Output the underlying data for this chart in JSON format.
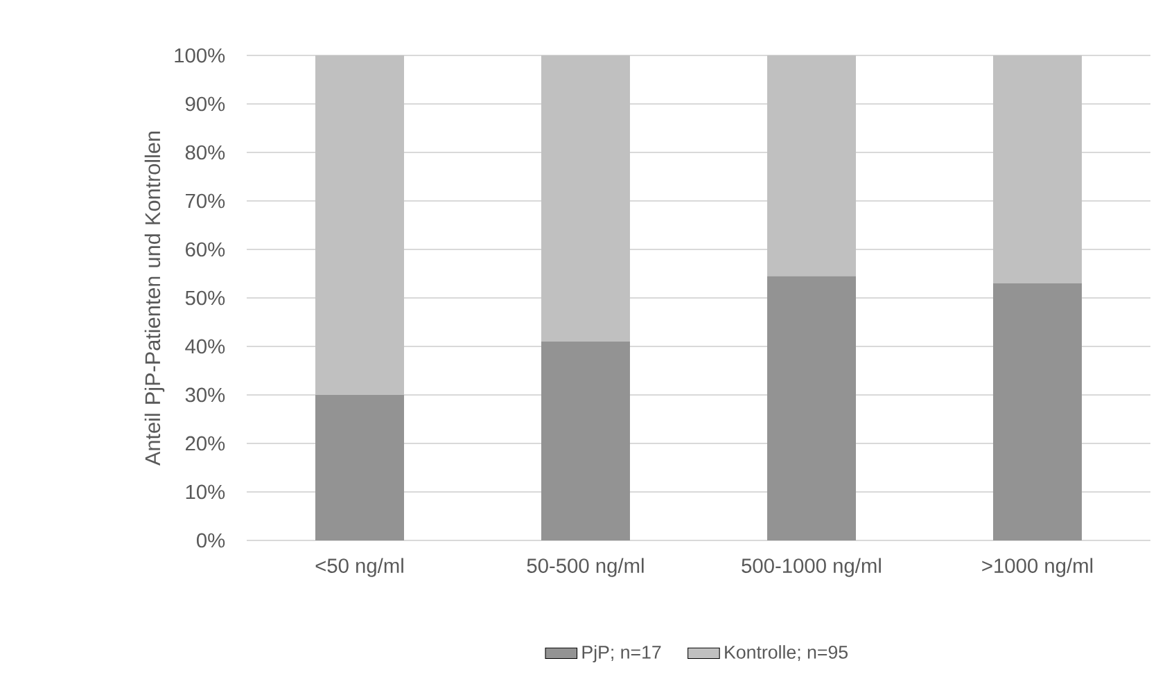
{
  "chart_data": {
    "type": "bar",
    "stacked": true,
    "ylabel": "Anteil PjP-Patienten und Kontrollen",
    "categories": [
      "<50 ng/ml",
      "50-500 ng/ml",
      "500-1000 ng/ml",
      ">1000 ng/ml"
    ],
    "series": [
      {
        "name": "PjP; n=17",
        "color": "#939393",
        "values": [
          30,
          41,
          54.5,
          53
        ]
      },
      {
        "name": "Kontrolle; n=95",
        "color": "#c0c0c0",
        "values": [
          70,
          59,
          45.5,
          47
        ]
      }
    ],
    "ylim": [
      0,
      100
    ],
    "yticks": [
      {
        "value": 0,
        "label": "0%"
      },
      {
        "value": 10,
        "label": "10%"
      },
      {
        "value": 20,
        "label": "20%"
      },
      {
        "value": 30,
        "label": "30%"
      },
      {
        "value": 40,
        "label": "40%"
      },
      {
        "value": 50,
        "label": "50%"
      },
      {
        "value": 60,
        "label": "60%"
      },
      {
        "value": 70,
        "label": "70%"
      },
      {
        "value": 80,
        "label": "80%"
      },
      {
        "value": 90,
        "label": "90%"
      },
      {
        "value": 100,
        "label": "100%"
      }
    ],
    "grid": "y",
    "legend": "bottom"
  }
}
